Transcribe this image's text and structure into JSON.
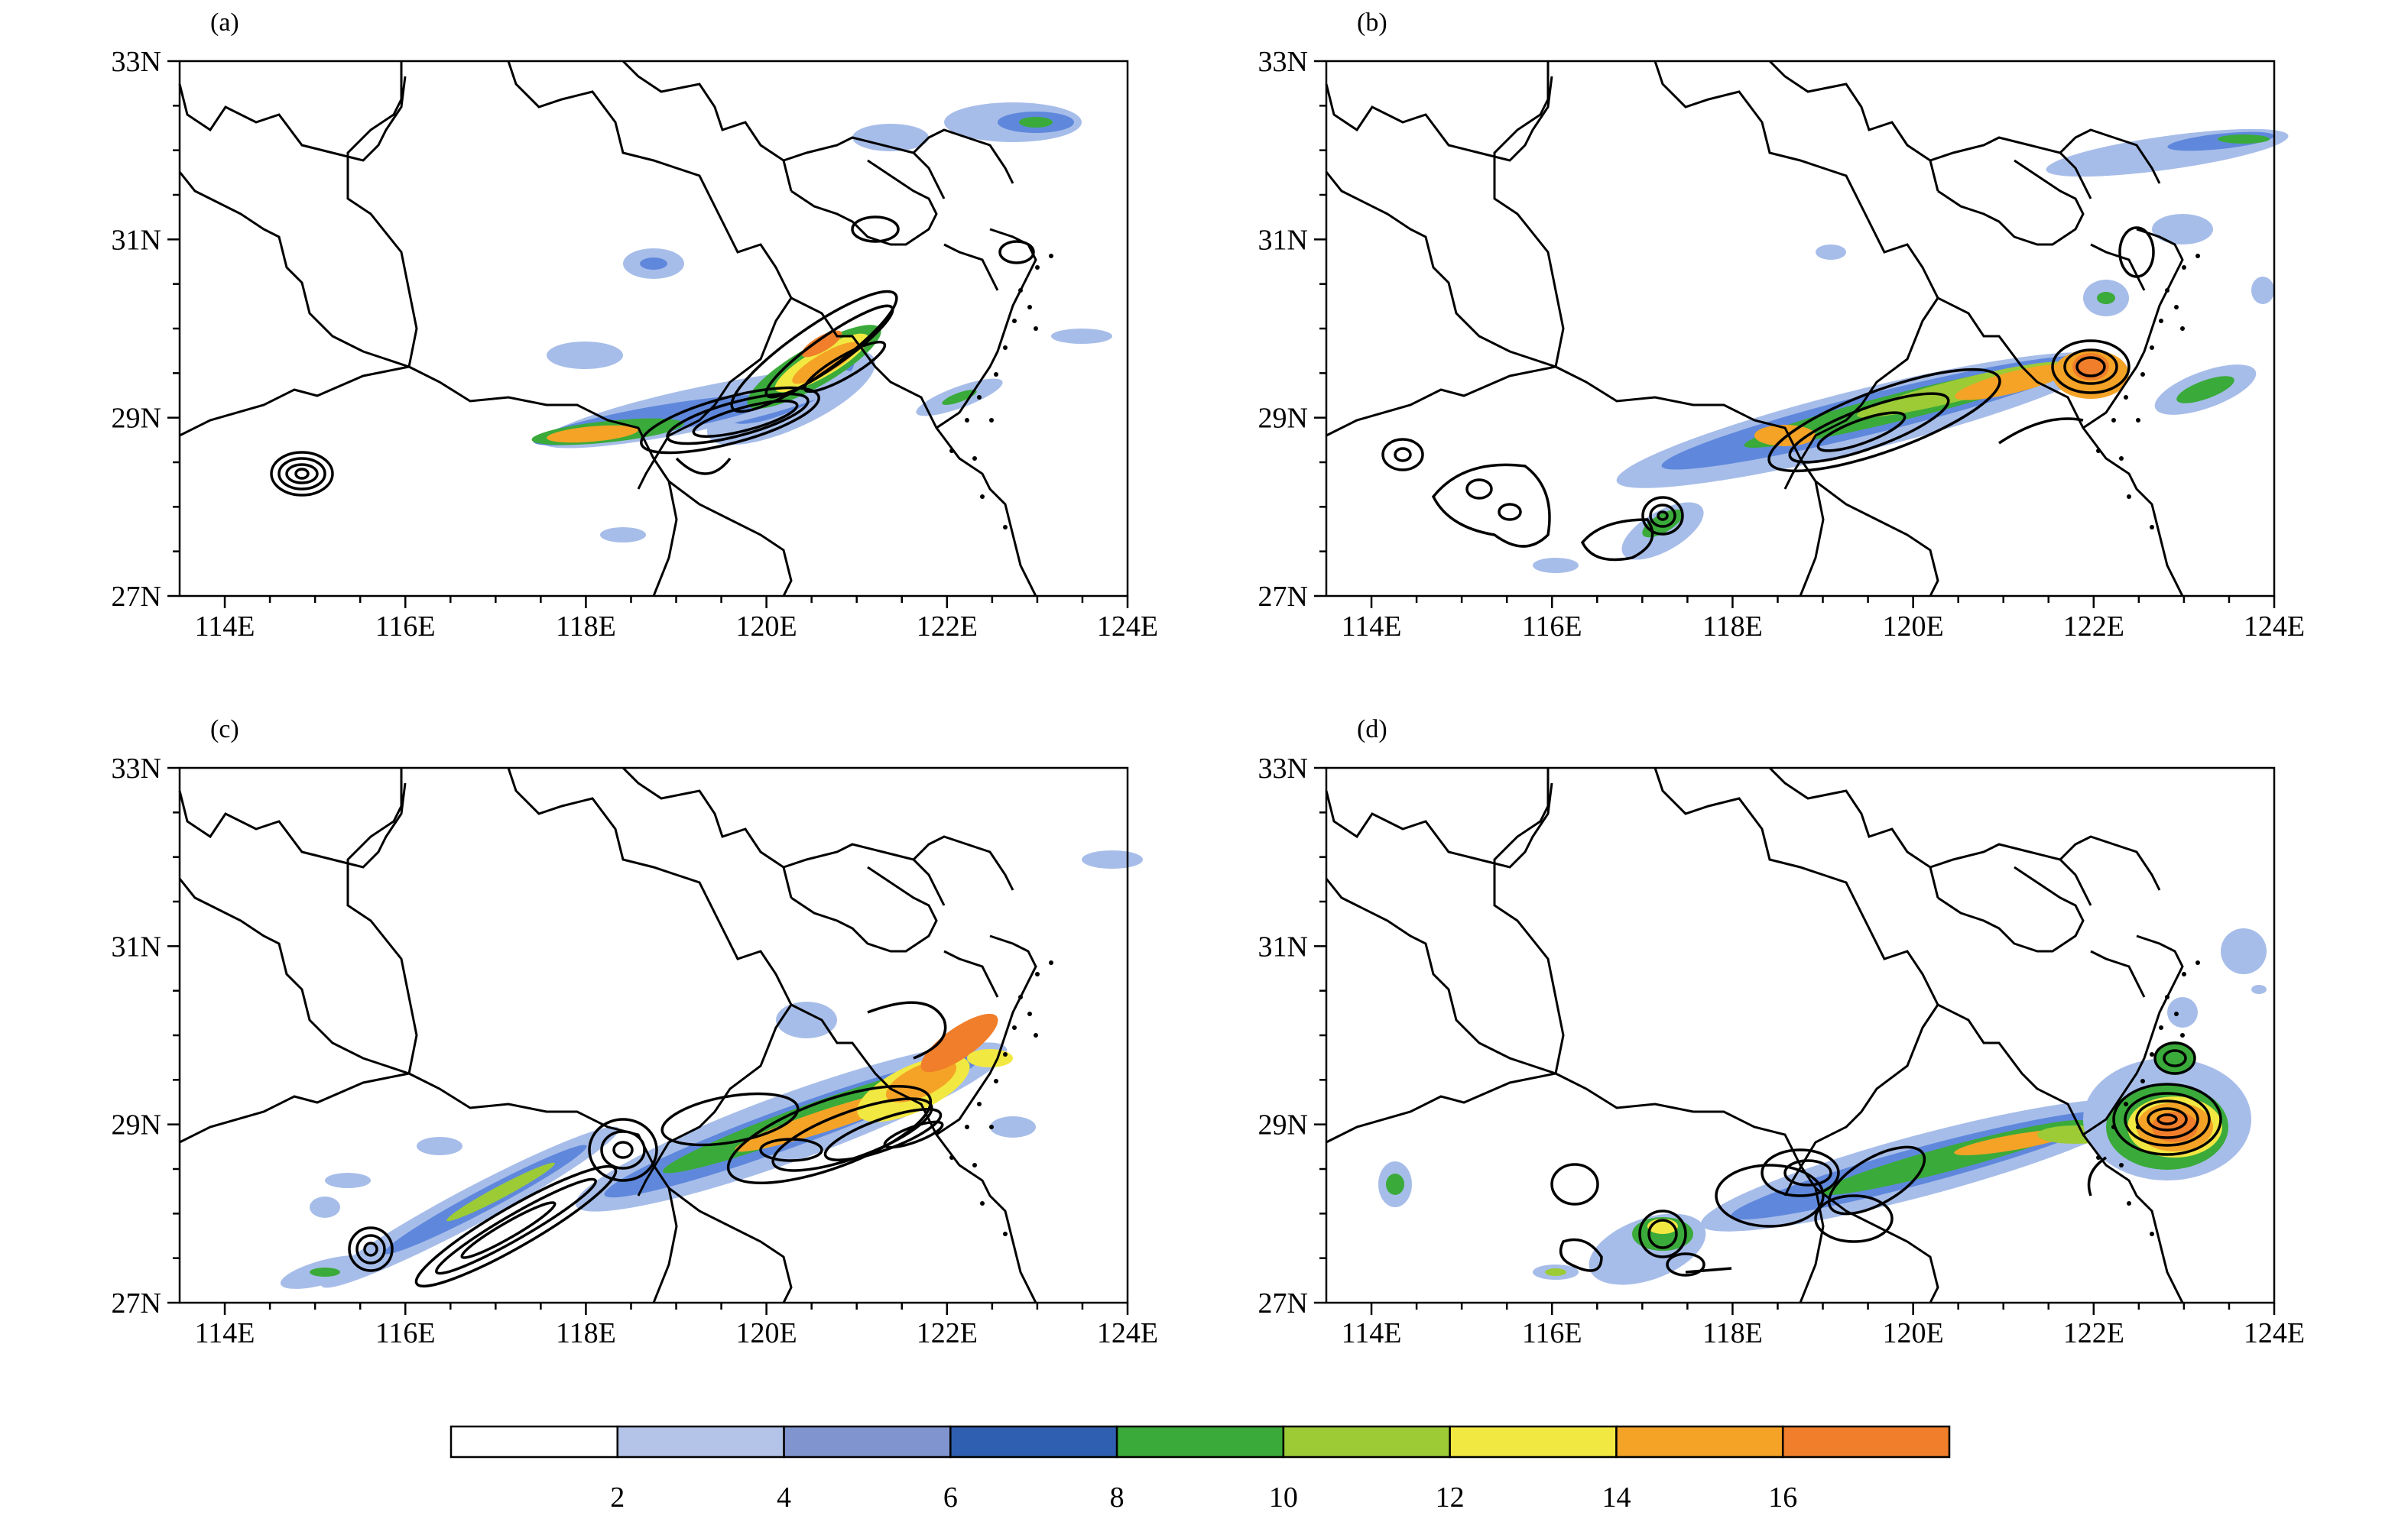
{
  "panels": [
    {
      "label": "(a)"
    },
    {
      "label": "(b)"
    },
    {
      "label": "(c)"
    },
    {
      "label": "(d)"
    }
  ],
  "axes": {
    "lon_ticks": [
      "114E",
      "116E",
      "118E",
      "120E",
      "122E",
      "124E"
    ],
    "lat_ticks": [
      "27N",
      "29N",
      "31N",
      "33N"
    ],
    "lon_range": [
      113.5,
      124
    ],
    "lat_range": [
      27,
      33
    ]
  },
  "colorbar": {
    "tick_labels": [
      "2",
      "4",
      "6",
      "8",
      "10",
      "12",
      "14",
      "16"
    ],
    "colors": [
      "#ffffff",
      "#b4c3e8",
      "#8095cf",
      "#2f5fb0",
      "#3aaa3a",
      "#9ccb36",
      "#f2e842",
      "#f4a326",
      "#f07e2a"
    ]
  },
  "colors": {
    "light_blue": "#a7bde9",
    "mid_blue": "#5f88dc",
    "dark_blue": "#2f5fb0",
    "green": "#3aaa3a",
    "yellow_green": "#9ccb36",
    "yellow": "#f2e842",
    "orange": "#f4a326",
    "dark_orange": "#f07e2a",
    "line": "#000000"
  }
}
